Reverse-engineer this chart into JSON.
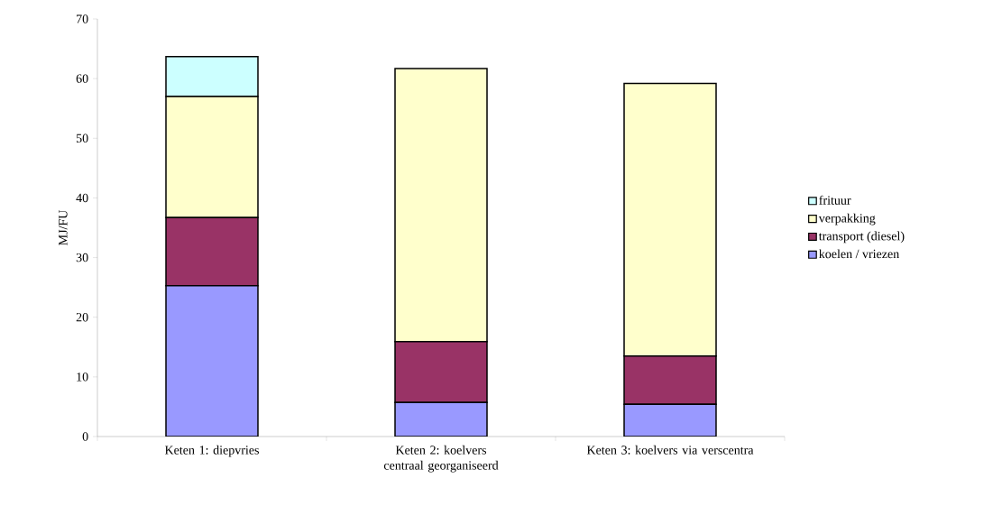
{
  "chart_data": {
    "type": "bar",
    "stacked": true,
    "ylabel": "MJ/FU",
    "categories": [
      "Keten 1: diepvries",
      "Keten 2: koelvers centraal georganiseerd",
      "Keten 3: koelvers via verscentra"
    ],
    "series": [
      {
        "name": "koelen / vriezen",
        "color": "#9999ff",
        "values": [
          25.3,
          5.7,
          5.4
        ]
      },
      {
        "name": "transport (diesel)",
        "color": "#993366",
        "values": [
          11.4,
          10.2,
          8.1
        ]
      },
      {
        "name": "verpakking",
        "color": "#ffffcc",
        "values": [
          20.3,
          45.8,
          45.7
        ]
      },
      {
        "name": "frituur",
        "color": "#ccffff",
        "values": [
          6.7,
          null,
          null
        ]
      }
    ],
    "ylim": [
      0,
      70
    ],
    "yticks": [
      0,
      10,
      20,
      30,
      40,
      50,
      60,
      70
    ],
    "grid": false,
    "legend": "right"
  }
}
